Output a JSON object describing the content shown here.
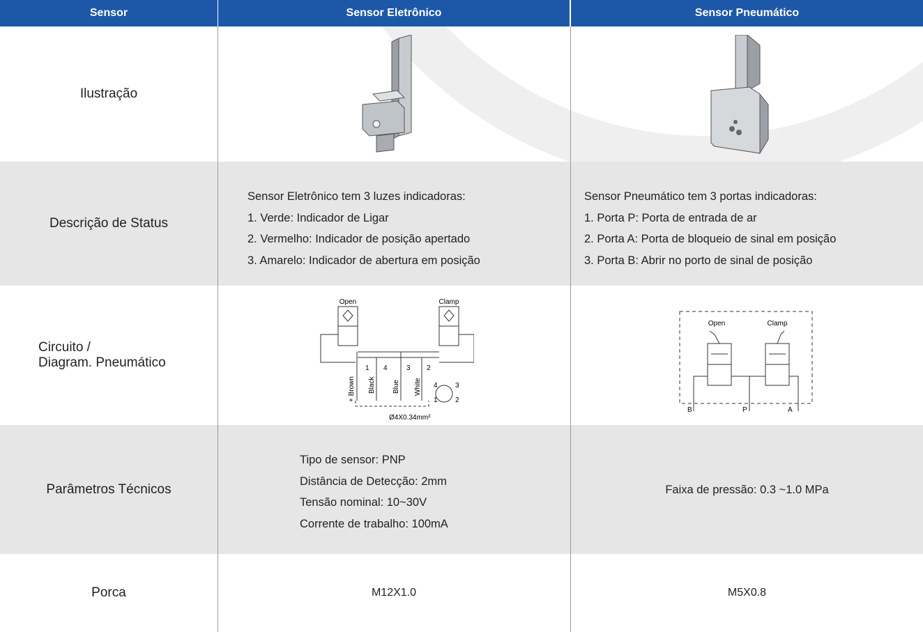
{
  "header": {
    "columns": [
      "Sensor",
      "Sensor Eletrônico",
      "Sensor Pneumático"
    ]
  },
  "rows": {
    "illustration": {
      "label": "Ilustração"
    },
    "status": {
      "label": "Descrição de Status",
      "electronic": [
        "Sensor Eletrônico tem 3 luzes indicadoras:",
        "1. Verde: Indicador de Ligar",
        "2. Vermelho: Indicador de posição apertado",
        "3. Amarelo: Indicador de abertura em posição"
      ],
      "pneumatic": [
        "Sensor Pneumático tem 3 portas indicadoras:",
        "1. Porta P: Porta de entrada de ar",
        "2. Porta A: Porta de bloqueio de sinal em posição",
        "3. Porta B: Abrir no porto de sinal de posição"
      ]
    },
    "circuit": {
      "label": [
        "Circuito /",
        "Diagram. Pneumático"
      ],
      "electronic": {
        "open": "Open",
        "clamp": "Clamp",
        "pins": [
          "1",
          "4",
          "3",
          "2"
        ],
        "wires": [
          "+ Brown",
          "Black",
          "Blue",
          "White"
        ],
        "connector": [
          "4",
          "3",
          "1",
          "2"
        ],
        "cable": "Ø4X0.34mm²"
      },
      "pneumatic": {
        "open": "Open",
        "clamp": "Clamp",
        "ports": [
          "B",
          "P",
          "A"
        ]
      }
    },
    "params": {
      "label": "Parâmetros Técnicos",
      "electronic": [
        "Tipo de sensor:   PNP",
        "Distância de Detecção: 2mm",
        "Tensão nominal:  10~30V",
        "Corrente de trabalho: 100mA"
      ],
      "pneumatic": [
        "Faixa de pressão: 0.3 ~1.0 MPa"
      ]
    },
    "nut": {
      "label": "Porca",
      "electronic": "M12X1.0",
      "pneumatic": "M5X0.8"
    }
  }
}
